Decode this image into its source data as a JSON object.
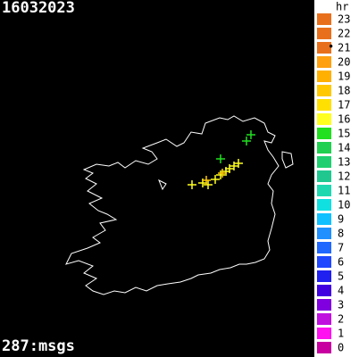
{
  "header": {
    "date": "16032023"
  },
  "footer": {
    "message_count": "287:msgs"
  },
  "legend": {
    "title": "hr",
    "entries": [
      {
        "label": "23",
        "color": "#e8701c"
      },
      {
        "label": "22",
        "color": "#e8701c"
      },
      {
        "label": "21",
        "color": "#e8701c"
      },
      {
        "label": "20",
        "color": "#ffa010"
      },
      {
        "label": "19",
        "color": "#ffb000"
      },
      {
        "label": "18",
        "color": "#ffc800"
      },
      {
        "label": "17",
        "color": "#ffe000"
      },
      {
        "label": "16",
        "color": "#ffff20"
      },
      {
        "label": "15",
        "color": "#20e020"
      },
      {
        "label": "14",
        "color": "#20d050"
      },
      {
        "label": "13",
        "color": "#20d070"
      },
      {
        "label": "12",
        "color": "#20c890"
      },
      {
        "label": "11",
        "color": "#20d8b0"
      },
      {
        "label": "10",
        "color": "#10e0e0"
      },
      {
        "label": "9",
        "color": "#10c0ff"
      },
      {
        "label": "8",
        "color": "#2090ff"
      },
      {
        "label": "7",
        "color": "#2068ff"
      },
      {
        "label": "6",
        "color": "#2048ff"
      },
      {
        "label": "5",
        "color": "#2020f0"
      },
      {
        "label": "4",
        "color": "#4000e0"
      },
      {
        "label": "3",
        "color": "#8000e0"
      },
      {
        "label": "2",
        "color": "#c010e0"
      },
      {
        "label": "1",
        "color": "#ff10f0"
      },
      {
        "label": "0",
        "color": "#c800a0"
      }
    ]
  }
}
